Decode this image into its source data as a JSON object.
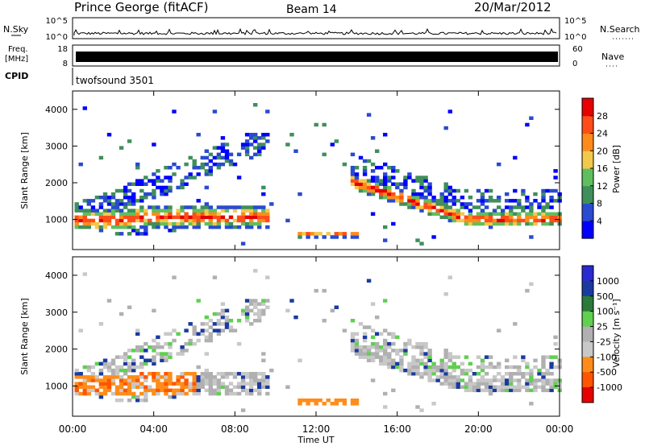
{
  "header": {
    "station": "Prince George (fitACF)",
    "beam": "Beam 14",
    "date": "20/Mar/2012"
  },
  "noise_panel": {
    "left_label": "N.Sky",
    "right_label": "N.Search",
    "left_ticks": [
      "10^5",
      "10^0"
    ],
    "right_ticks": [
      "10^5",
      "10^0"
    ]
  },
  "freq_panel": {
    "left_label_line1": "Freq.",
    "left_label_line2": "[MHz]",
    "left_ticks": [
      "18",
      "8"
    ],
    "right_label": "Nave",
    "right_ticks": [
      "60",
      "0"
    ]
  },
  "cpid_panel": {
    "label": "CPID",
    "program": "twofsound 3501"
  },
  "colors": {
    "power": [
      "#0000ff",
      "#2a4ad0",
      "#3f8f5a",
      "#5fbf5f",
      "#f2c94c",
      "#ff8c1a",
      "#ff4d1a",
      "#e60000"
    ],
    "velocity": [
      "#e60000",
      "#ff5500",
      "#ff8c1a",
      "#c8c8c8",
      "#b0b0b0",
      "#5fd050",
      "#2a7a3a",
      "#1a3aa0",
      "#2a2ad0"
    ]
  },
  "chart_data": [
    {
      "type": "heatmap",
      "name": "power",
      "ylabel": "Slant Range [km]",
      "ylim": [
        180,
        4500
      ],
      "yticks": [
        "1000",
        "2000",
        "3000",
        "4000"
      ],
      "xlim": [
        0,
        24
      ],
      "xticks": [
        "00:00",
        "04:00",
        "08:00",
        "12:00",
        "16:00",
        "20:00",
        "00:00"
      ],
      "colorbar_label": "Power [dB]",
      "colorbar_ticks": [
        "4",
        "8",
        "12",
        "16",
        "20",
        "24",
        "28"
      ],
      "colorbar_range": [
        0,
        32
      ]
    },
    {
      "type": "heatmap",
      "name": "velocity",
      "ylabel": "Slant Range [km]",
      "ylim": [
        180,
        4500
      ],
      "yticks": [
        "1000",
        "2000",
        "3000",
        "4000"
      ],
      "xlim": [
        0,
        24
      ],
      "xticks": [
        "00:00",
        "04:00",
        "08:00",
        "12:00",
        "16:00",
        "20:00",
        "00:00"
      ],
      "xlabel": "Time UT",
      "colorbar_label": "Velocity [m s⁻¹]",
      "colorbar_ticks": [
        "1000",
        "500",
        "100",
        "25",
        "-25",
        "-100",
        "-500",
        "-1000"
      ]
    }
  ]
}
